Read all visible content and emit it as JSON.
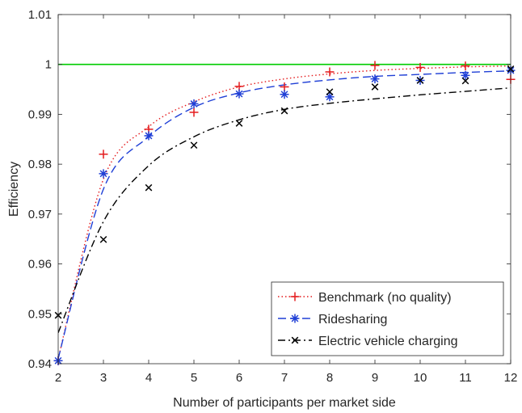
{
  "chart_data": {
    "type": "scatter",
    "xlabel": "Number of participants per market side",
    "ylabel": "Efficiency",
    "xlim": [
      2,
      12
    ],
    "ylim": [
      0.94,
      1.01
    ],
    "xticks": [
      2,
      3,
      4,
      5,
      6,
      7,
      8,
      9,
      10,
      11,
      12
    ],
    "yticks": [
      0.94,
      0.95,
      0.96,
      0.97,
      0.98,
      0.99,
      1,
      1.01
    ],
    "ytick_labels": [
      "0.94",
      "0.95",
      "0.96",
      "0.97",
      "0.98",
      "0.99",
      "1",
      "1.01"
    ],
    "grid": false,
    "legend_position": "bottom-right",
    "reference_line": {
      "y": 1,
      "color": "#00cc00"
    },
    "series": [
      {
        "name": "Benchmark (no quality)",
        "color": "#e41a1c",
        "marker": "plus",
        "line_style": "dotted",
        "x": [
          2,
          3,
          4,
          5,
          6,
          7,
          8,
          9,
          10,
          11,
          12
        ],
        "points": [
          0.9406,
          0.982,
          0.987,
          0.9904,
          0.9956,
          0.9955,
          0.9985,
          0.9998,
          0.9994,
          0.9997,
          0.997
        ],
        "fit": [
          0.941,
          0.977,
          0.9875,
          0.9925,
          0.9955,
          0.9971,
          0.9981,
          0.9988,
          0.9992,
          0.9995,
          0.9997
        ]
      },
      {
        "name": "Ridesharing",
        "color": "#1f3fd6",
        "marker": "asterisk",
        "line_style": "dashed",
        "x": [
          2,
          3,
          4,
          5,
          6,
          7,
          8,
          9,
          10,
          11,
          12
        ],
        "points": [
          0.9406,
          0.9781,
          0.9857,
          0.9921,
          0.9941,
          0.994,
          0.9935,
          0.9971,
          0.9968,
          0.9978,
          0.9988
        ],
        "fit": [
          0.941,
          0.975,
          0.9855,
          0.9914,
          0.9943,
          0.9959,
          0.9969,
          0.9976,
          0.998,
          0.9984,
          0.9987
        ]
      },
      {
        "name": "Electric vehicle charging",
        "color": "#000000",
        "marker": "x",
        "line_style": "dashdot",
        "x": [
          2,
          3,
          4,
          5,
          6,
          7,
          8,
          9,
          10,
          11,
          12
        ],
        "points": [
          0.9497,
          0.9649,
          0.9753,
          0.9838,
          0.9882,
          0.9907,
          0.9945,
          0.9955,
          0.9968,
          0.9967,
          0.9991
        ],
        "fit": [
          0.9462,
          0.9685,
          0.9797,
          0.9855,
          0.9889,
          0.991,
          0.9922,
          0.9931,
          0.9939,
          0.9946,
          0.9953
        ]
      }
    ]
  }
}
